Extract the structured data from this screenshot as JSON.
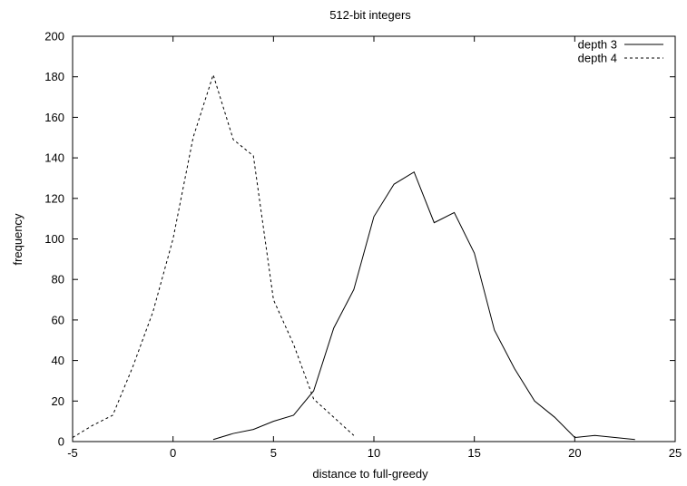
{
  "chart_data": {
    "type": "line",
    "title": "512-bit integers",
    "xlabel": "distance to full-greedy",
    "ylabel": "frequency",
    "xlim": [
      -5,
      25
    ],
    "ylim": [
      0,
      200
    ],
    "xticks": [
      -5,
      0,
      5,
      10,
      15,
      20,
      25
    ],
    "yticks": [
      0,
      20,
      40,
      60,
      80,
      100,
      120,
      140,
      160,
      180,
      200
    ],
    "grid": false,
    "legend_position": "top-right",
    "series": [
      {
        "name": "depth 3",
        "style": "solid",
        "x": [
          2,
          3,
          4,
          5,
          6,
          7,
          8,
          9,
          10,
          11,
          12,
          13,
          14,
          15,
          16,
          17,
          18,
          19,
          20,
          21,
          22,
          23
        ],
        "y": [
          1,
          4,
          6,
          10,
          13,
          25,
          56,
          75,
          111,
          127,
          133,
          108,
          113,
          93,
          55,
          36,
          20,
          12,
          2,
          3,
          2,
          1
        ]
      },
      {
        "name": "depth 4",
        "style": "dashed",
        "x": [
          -5,
          -4,
          -3,
          -2,
          -1,
          0,
          1,
          2,
          3,
          4,
          5,
          6,
          7,
          8,
          9
        ],
        "y": [
          2,
          8,
          13,
          37,
          64,
          100,
          150,
          181,
          149,
          141,
          70,
          48,
          21,
          12,
          3
        ]
      }
    ]
  }
}
